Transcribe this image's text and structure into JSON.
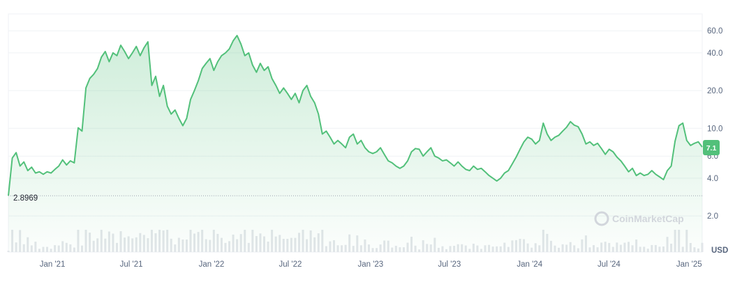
{
  "chart_data": {
    "type": "area",
    "y_scale": "log",
    "y_ticks": [
      2.0,
      4.0,
      6.0,
      10.0,
      20.0,
      40.0,
      60.0
    ],
    "y_tick_labels": [
      "2.0",
      "4.0",
      "6.0",
      "10.0",
      "20.0",
      "40.0",
      "60.0"
    ],
    "x_tick_labels": [
      "Jan '21",
      "Jul '21",
      "Jan '22",
      "Jul '22",
      "Jan '23",
      "Jul '23",
      "Jan '24",
      "Jul '24",
      "Jan '25"
    ],
    "currency_label": "USD",
    "min_marker": {
      "value": 2.8969,
      "label": "2.8969"
    },
    "current_price": {
      "value": 7.1,
      "label": "7.1"
    },
    "watermark": "CoinMarketCap",
    "grid": true,
    "colors": {
      "line": "#52c07a",
      "area_top": "#52c07a",
      "volume": "#d9dde3",
      "badge": "#52c07a"
    },
    "series": [
      {
        "values": [
          2.9,
          5.8,
          6.4,
          5.0,
          5.4,
          4.6,
          4.9,
          4.4,
          4.5,
          4.3,
          4.5,
          4.4,
          4.7,
          5.0,
          5.6,
          5.1,
          5.5,
          5.3,
          10.1,
          9.5,
          21.0,
          25.0,
          27.0,
          30.0,
          37.0,
          41.0,
          34.0,
          40.0,
          38.0,
          46.0,
          41.0,
          36.0,
          40.0,
          45.0,
          38.0,
          44.0,
          49.0,
          22.0,
          26.0,
          18.0,
          22.0,
          15.0,
          13.0,
          14.0,
          12.0,
          10.5,
          12.0,
          17.0,
          20.0,
          24.0,
          30.0,
          33.0,
          36.0,
          29.0,
          34.0,
          38.0,
          40.0,
          43.0,
          50.0,
          55.0,
          47.0,
          38.0,
          40.0,
          32.0,
          28.0,
          33.0,
          29.0,
          31.0,
          25.0,
          22.0,
          19.0,
          21.0,
          19.0,
          17.0,
          19.0,
          16.0,
          20.0,
          22.0,
          18.0,
          16.0,
          13.0,
          9.0,
          9.5,
          8.5,
          7.5,
          8.0,
          7.5,
          7.0,
          8.5,
          9.0,
          7.5,
          8.0,
          7.0,
          6.5,
          6.3,
          6.5,
          7.0,
          6.2,
          5.5,
          5.3,
          5.0,
          4.8,
          5.0,
          5.5,
          6.5,
          6.9,
          6.8,
          6.0,
          6.5,
          7.0,
          6.0,
          5.8,
          5.5,
          5.6,
          5.3,
          5.0,
          5.4,
          5.0,
          4.7,
          4.6,
          5.0,
          4.7,
          4.8,
          4.5,
          4.2,
          4.0,
          3.8,
          4.0,
          4.4,
          4.6,
          5.2,
          5.9,
          6.8,
          7.8,
          8.5,
          8.2,
          7.5,
          8.0,
          11.0,
          9.0,
          8.0,
          8.5,
          8.8,
          9.5,
          10.2,
          11.3,
          10.6,
          10.3,
          9.0,
          7.5,
          7.8,
          7.3,
          7.6,
          6.9,
          6.2,
          6.8,
          6.5,
          5.9,
          5.5,
          5.0,
          4.5,
          4.8,
          4.2,
          4.4,
          4.2,
          4.3,
          4.6,
          4.3,
          4.1,
          3.9,
          4.6,
          5.0,
          7.9,
          10.5,
          11.0,
          8.0,
          7.3,
          7.6,
          7.8,
          7.1
        ]
      }
    ],
    "x_range": [
      "2020-09-22",
      "2025-01-31"
    ]
  }
}
